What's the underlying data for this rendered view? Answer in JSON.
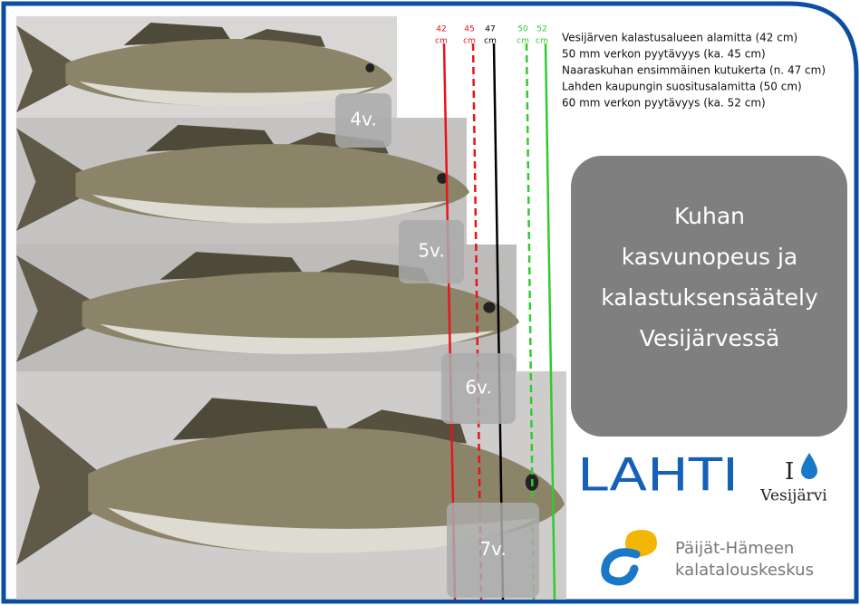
{
  "legend": [
    "Vesijärven kalastusalueen alamitta (42 cm)",
    "50 mm verkon pyytävyys (ka. 45 cm)",
    "Naaraskuhan ensimmäinen kutukerta (n. 47 cm)",
    "Lahden kaupungin suositusalamitta (50 cm)",
    "60 mm verkon pyytävyys (ka. 52 cm)"
  ],
  "length_markers": [
    {
      "value": "42",
      "unit": "cm"
    },
    {
      "value": "45",
      "unit": "cm"
    },
    {
      "value": "47",
      "unit": "cm"
    },
    {
      "value": "50",
      "unit": "cm"
    },
    {
      "value": "52",
      "unit": "cm"
    }
  ],
  "age_labels": [
    "4v.",
    "5v.",
    "6v.",
    "7v."
  ],
  "title": [
    "Kuhan",
    "kasvunopeus ja",
    "kalastuksensäätely",
    "Vesijärvessä"
  ],
  "logos": {
    "lahti": "LAHTI",
    "vesijarvi_mark": "I",
    "vesijarvi": "Vesijärvi",
    "kalatalous": [
      "Päijät-Hämeen",
      "kalatalouskeskus"
    ]
  }
}
